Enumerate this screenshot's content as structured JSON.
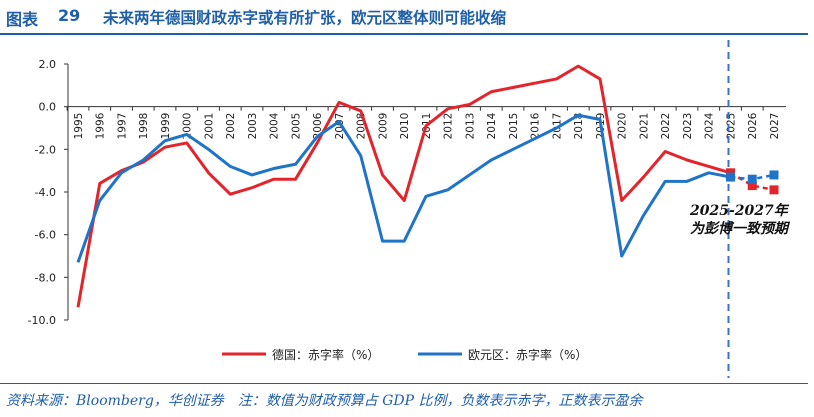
{
  "header": {
    "figure_label": "图表",
    "figure_number": "29",
    "title": "未来两年德国财政赤字或有所扩张，欧元区整体则可能收缩"
  },
  "footer": {
    "source": "资料来源：Bloomberg，华创证券　注：数值为财政预算占 GDP 比例，负数表示赤字，正数表示盈余"
  },
  "colors": {
    "germany": "#e3242b",
    "eurozone": "#1f73c8",
    "accent": "#1f5fa8",
    "projection_line": "#3a72c4"
  },
  "chart_data": {
    "type": "line",
    "x": [
      "1995",
      "1996",
      "1997",
      "1998",
      "1999",
      "2000",
      "2001",
      "2002",
      "2003",
      "2004",
      "2005",
      "2006",
      "2007",
      "2008",
      "2009",
      "2010",
      "2011",
      "2012",
      "2013",
      "2014",
      "2015",
      "2016",
      "2017",
      "2018",
      "2019",
      "2020",
      "2021",
      "2022",
      "2023",
      "2024",
      "2025",
      "2026",
      "2027"
    ],
    "series": [
      {
        "name": "德国：赤字率（%）",
        "values": [
          -9.4,
          -3.6,
          -3.0,
          -2.6,
          -1.9,
          -1.7,
          -3.1,
          -4.1,
          -3.8,
          -3.4,
          -3.4,
          -1.7,
          0.2,
          -0.2,
          -3.2,
          -4.4,
          -0.9,
          -0.1,
          0.1,
          0.7,
          0.9,
          1.1,
          1.3,
          1.9,
          1.3,
          -4.4,
          -3.3,
          -2.1,
          -2.5,
          -2.8,
          -3.1,
          -3.7,
          -3.9
        ],
        "projected_from": "2025"
      },
      {
        "name": "欧元区：赤字率（%）",
        "values": [
          -7.3,
          -4.4,
          -3.1,
          -2.5,
          -1.6,
          -1.3,
          -2.0,
          -2.8,
          -3.2,
          -2.9,
          -2.7,
          -1.4,
          -0.7,
          -2.3,
          -6.3,
          -6.3,
          -4.2,
          -3.9,
          -3.2,
          -2.5,
          -2.0,
          -1.5,
          -1.0,
          -0.4,
          -0.6,
          -7.0,
          -5.1,
          -3.5,
          -3.5,
          -3.1,
          -3.3,
          -3.4,
          -3.2
        ],
        "projected_from": "2025"
      }
    ],
    "ylim": [
      -10,
      2
    ],
    "yticks": [
      "2.0",
      "0.0",
      "-2.0",
      "-4.0",
      "-6.0",
      "-8.0",
      "-10.0"
    ],
    "grid": false,
    "legend_position": "bottom",
    "annotation": "2025-2027年为彭博一致预期",
    "projection_start": "2025"
  }
}
